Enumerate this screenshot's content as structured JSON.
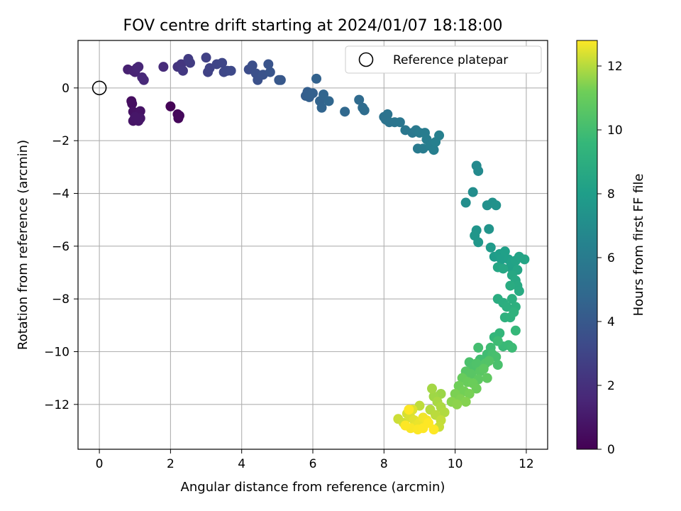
{
  "chart_data": {
    "type": "scatter",
    "title": "FOV centre drift starting at 2024/01/07 18:18:00",
    "xlabel": "Angular distance from reference (arcmin)",
    "ylabel": "Rotation from reference (arcmin)",
    "colorbar_label": "Hours from first FF file",
    "xlim": [
      -0.6,
      12.6
    ],
    "ylim": [
      -13.7,
      1.8
    ],
    "x_ticks": [
      0,
      2,
      4,
      6,
      8,
      10,
      12
    ],
    "x_tick_labels": [
      "0",
      "2",
      "4",
      "6",
      "8",
      "10",
      "12"
    ],
    "y_ticks": [
      0,
      -2,
      -4,
      -6,
      -8,
      -10,
      -12
    ],
    "y_tick_labels": [
      "0",
      "−2",
      "−4",
      "−6",
      "−8",
      "−10",
      "−12"
    ],
    "colorbar_range": [
      0,
      12.8
    ],
    "colorbar_ticks": [
      0,
      2,
      4,
      6,
      8,
      10,
      12
    ],
    "colorbar_tick_labels": [
      "0",
      "2",
      "4",
      "6",
      "8",
      "10",
      "12"
    ],
    "colormap": "viridis",
    "grid": true,
    "legend_placement": "top-right",
    "reference": {
      "label": "Reference platepar",
      "x": 0,
      "y": 0
    },
    "points": [
      [
        2.0,
        -0.7,
        0.1
      ],
      [
        2.2,
        -1.0,
        0.2
      ],
      [
        2.22,
        -1.15,
        0.25
      ],
      [
        2.25,
        -1.05,
        0.3
      ],
      [
        0.9,
        -0.5,
        0.5
      ],
      [
        0.92,
        -0.6,
        0.55
      ],
      [
        0.95,
        -0.9,
        0.65
      ],
      [
        1.05,
        -0.95,
        0.7
      ],
      [
        1.15,
        -0.88,
        0.75
      ],
      [
        0.95,
        -1.25,
        0.8
      ],
      [
        1.1,
        -1.25,
        0.85
      ],
      [
        1.15,
        -1.15,
        0.9
      ],
      [
        1.0,
        -1.1,
        0.88
      ],
      [
        0.8,
        0.7,
        1.3
      ],
      [
        0.95,
        0.65,
        1.4
      ],
      [
        1.0,
        0.6,
        1.45
      ],
      [
        1.05,
        0.75,
        1.5
      ],
      [
        1.1,
        0.8,
        1.55
      ],
      [
        1.2,
        0.4,
        1.6
      ],
      [
        1.25,
        0.3,
        1.65
      ],
      [
        1.8,
        0.8,
        1.8
      ],
      [
        2.2,
        0.8,
        2.2
      ],
      [
        2.3,
        0.9,
        2.3
      ],
      [
        2.35,
        0.65,
        2.4
      ],
      [
        2.5,
        1.1,
        2.5
      ],
      [
        2.55,
        0.95,
        2.55
      ],
      [
        3.0,
        1.15,
        2.8
      ],
      [
        3.05,
        0.6,
        2.85
      ],
      [
        3.1,
        0.75,
        2.9
      ],
      [
        3.3,
        0.9,
        3.0
      ],
      [
        3.45,
        0.95,
        3.05
      ],
      [
        3.5,
        0.6,
        3.1
      ],
      [
        3.6,
        0.65,
        3.15
      ],
      [
        3.7,
        0.65,
        3.2
      ],
      [
        4.2,
        0.7,
        3.4
      ],
      [
        4.3,
        0.85,
        3.5
      ],
      [
        4.4,
        0.55,
        3.55
      ],
      [
        4.45,
        0.3,
        3.6
      ],
      [
        4.6,
        0.5,
        3.7
      ],
      [
        4.75,
        0.9,
        3.75
      ],
      [
        4.8,
        0.6,
        3.8
      ],
      [
        5.05,
        0.3,
        3.9
      ],
      [
        5.1,
        0.3,
        3.95
      ],
      [
        5.8,
        -0.3,
        4.3
      ],
      [
        5.85,
        -0.15,
        4.35
      ],
      [
        5.9,
        -0.35,
        4.4
      ],
      [
        6.0,
        -0.2,
        4.45
      ],
      [
        6.1,
        0.35,
        4.5
      ],
      [
        6.2,
        -0.5,
        4.6
      ],
      [
        6.25,
        -0.75,
        4.65
      ],
      [
        6.3,
        -0.25,
        4.7
      ],
      [
        6.45,
        -0.5,
        4.75
      ],
      [
        6.9,
        -0.9,
        4.85
      ],
      [
        7.3,
        -0.45,
        5.0
      ],
      [
        7.4,
        -0.75,
        5.05
      ],
      [
        7.45,
        -0.85,
        5.1
      ],
      [
        8.0,
        -1.1,
        5.4
      ],
      [
        8.05,
        -1.2,
        5.45
      ],
      [
        8.1,
        -1.0,
        5.5
      ],
      [
        8.15,
        -1.3,
        5.55
      ],
      [
        8.3,
        -1.3,
        5.6
      ],
      [
        8.45,
        -1.3,
        5.65
      ],
      [
        8.6,
        -1.6,
        5.75
      ],
      [
        8.8,
        -1.7,
        5.8
      ],
      [
        8.9,
        -1.6,
        5.85
      ],
      [
        8.95,
        -2.3,
        5.9
      ],
      [
        9.0,
        -1.7,
        5.95
      ],
      [
        9.1,
        -2.3,
        6.0
      ],
      [
        9.15,
        -1.7,
        6.05
      ],
      [
        9.2,
        -1.95,
        6.1
      ],
      [
        9.3,
        -2.2,
        6.15
      ],
      [
        9.4,
        -2.35,
        6.2
      ],
      [
        9.45,
        -2.05,
        6.25
      ],
      [
        9.55,
        -1.8,
        6.3
      ],
      [
        10.6,
        -2.95,
        6.8
      ],
      [
        10.65,
        -3.15,
        6.85
      ],
      [
        10.5,
        -3.95,
        7.0
      ],
      [
        10.3,
        -4.35,
        7.1
      ],
      [
        10.9,
        -4.45,
        7.2
      ],
      [
        11.05,
        -4.35,
        7.25
      ],
      [
        11.15,
        -4.45,
        7.3
      ],
      [
        10.95,
        -5.35,
        7.4
      ],
      [
        10.6,
        -5.4,
        7.5
      ],
      [
        10.55,
        -5.6,
        7.55
      ],
      [
        10.65,
        -5.85,
        7.6
      ],
      [
        11.0,
        -6.05,
        7.8
      ],
      [
        11.1,
        -6.4,
        7.9
      ],
      [
        11.25,
        -6.3,
        8.0
      ],
      [
        11.3,
        -6.5,
        8.05
      ],
      [
        11.4,
        -6.2,
        8.1
      ],
      [
        11.5,
        -6.5,
        8.15
      ],
      [
        11.55,
        -6.8,
        8.2
      ],
      [
        11.6,
        -6.6,
        8.25
      ],
      [
        11.7,
        -6.55,
        8.3
      ],
      [
        11.8,
        -6.4,
        8.35
      ],
      [
        11.95,
        -6.5,
        8.4
      ],
      [
        11.75,
        -6.9,
        8.45
      ],
      [
        11.2,
        -6.8,
        8.5
      ],
      [
        11.35,
        -6.85,
        8.55
      ],
      [
        11.6,
        -7.1,
        8.6
      ],
      [
        11.7,
        -7.3,
        8.65
      ],
      [
        11.75,
        -7.5,
        8.7
      ],
      [
        11.8,
        -7.7,
        8.75
      ],
      [
        11.55,
        -7.5,
        8.8
      ],
      [
        11.2,
        -8.0,
        8.9
      ],
      [
        11.35,
        -8.15,
        8.95
      ],
      [
        11.45,
        -8.3,
        9.0
      ],
      [
        11.6,
        -8.0,
        9.05
      ],
      [
        11.7,
        -8.3,
        9.1
      ],
      [
        11.4,
        -8.7,
        9.15
      ],
      [
        11.55,
        -8.7,
        9.2
      ],
      [
        11.65,
        -8.5,
        9.25
      ],
      [
        11.25,
        -9.3,
        9.5
      ],
      [
        11.1,
        -9.45,
        9.55
      ],
      [
        11.7,
        -9.2,
        9.6
      ],
      [
        11.35,
        -9.8,
        9.7
      ],
      [
        11.5,
        -9.75,
        9.75
      ],
      [
        11.6,
        -9.85,
        9.8
      ],
      [
        11.2,
        -9.6,
        9.85
      ],
      [
        11.0,
        -9.85,
        9.9
      ],
      [
        10.9,
        -10.1,
        9.95
      ],
      [
        10.7,
        -10.3,
        10.0
      ],
      [
        10.65,
        -9.85,
        10.05
      ],
      [
        11.05,
        -10.1,
        10.1
      ],
      [
        11.15,
        -10.2,
        10.15
      ],
      [
        11.2,
        -10.5,
        10.2
      ],
      [
        10.4,
        -10.4,
        10.25
      ],
      [
        10.5,
        -10.6,
        10.3
      ],
      [
        10.6,
        -10.45,
        10.35
      ],
      [
        10.85,
        -10.45,
        10.4
      ],
      [
        10.95,
        -10.35,
        10.45
      ],
      [
        10.3,
        -10.75,
        10.55
      ],
      [
        10.45,
        -10.85,
        10.6
      ],
      [
        10.7,
        -10.75,
        10.65
      ],
      [
        10.8,
        -10.65,
        10.7
      ],
      [
        10.65,
        -11.05,
        10.75
      ],
      [
        10.9,
        -11.0,
        10.8
      ],
      [
        10.2,
        -11.0,
        11.0
      ],
      [
        10.35,
        -11.15,
        11.05
      ],
      [
        10.5,
        -11.2,
        11.1
      ],
      [
        10.6,
        -11.4,
        11.15
      ],
      [
        10.1,
        -11.3,
        11.2
      ],
      [
        10.25,
        -11.5,
        11.25
      ],
      [
        10.4,
        -11.6,
        11.3
      ],
      [
        10.0,
        -11.6,
        11.35
      ],
      [
        10.15,
        -11.8,
        11.4
      ],
      [
        10.3,
        -11.9,
        11.45
      ],
      [
        9.9,
        -11.9,
        11.5
      ],
      [
        10.05,
        -12.0,
        11.55
      ],
      [
        9.6,
        -11.6,
        11.7
      ],
      [
        9.4,
        -11.7,
        11.75
      ],
      [
        9.35,
        -11.4,
        11.8
      ],
      [
        9.5,
        -11.9,
        11.85
      ],
      [
        9.6,
        -12.1,
        11.9
      ],
      [
        9.7,
        -12.3,
        11.95
      ],
      [
        9.3,
        -12.2,
        12.0
      ],
      [
        9.45,
        -12.4,
        12.05
      ],
      [
        9.0,
        -12.05,
        12.1
      ],
      [
        9.6,
        -12.6,
        12.15
      ],
      [
        9.55,
        -12.85,
        12.2
      ],
      [
        8.4,
        -12.55,
        12.25
      ],
      [
        8.55,
        -12.7,
        12.3
      ],
      [
        8.65,
        -12.35,
        12.35
      ],
      [
        8.75,
        -12.5,
        12.4
      ],
      [
        8.8,
        -12.2,
        12.45
      ],
      [
        8.85,
        -12.6,
        12.5
      ],
      [
        8.9,
        -12.8,
        12.55
      ],
      [
        9.0,
        -12.7,
        12.6
      ],
      [
        9.1,
        -12.5,
        12.65
      ],
      [
        9.2,
        -12.6,
        12.7
      ],
      [
        8.75,
        -12.9,
        12.75
      ],
      [
        8.95,
        -12.95,
        12.78
      ],
      [
        9.1,
        -12.9,
        12.8
      ],
      [
        9.25,
        -12.7,
        12.8
      ],
      [
        9.4,
        -12.95,
        12.8
      ],
      [
        8.6,
        -12.8,
        12.8
      ],
      [
        8.7,
        -12.2,
        12.8
      ]
    ]
  }
}
